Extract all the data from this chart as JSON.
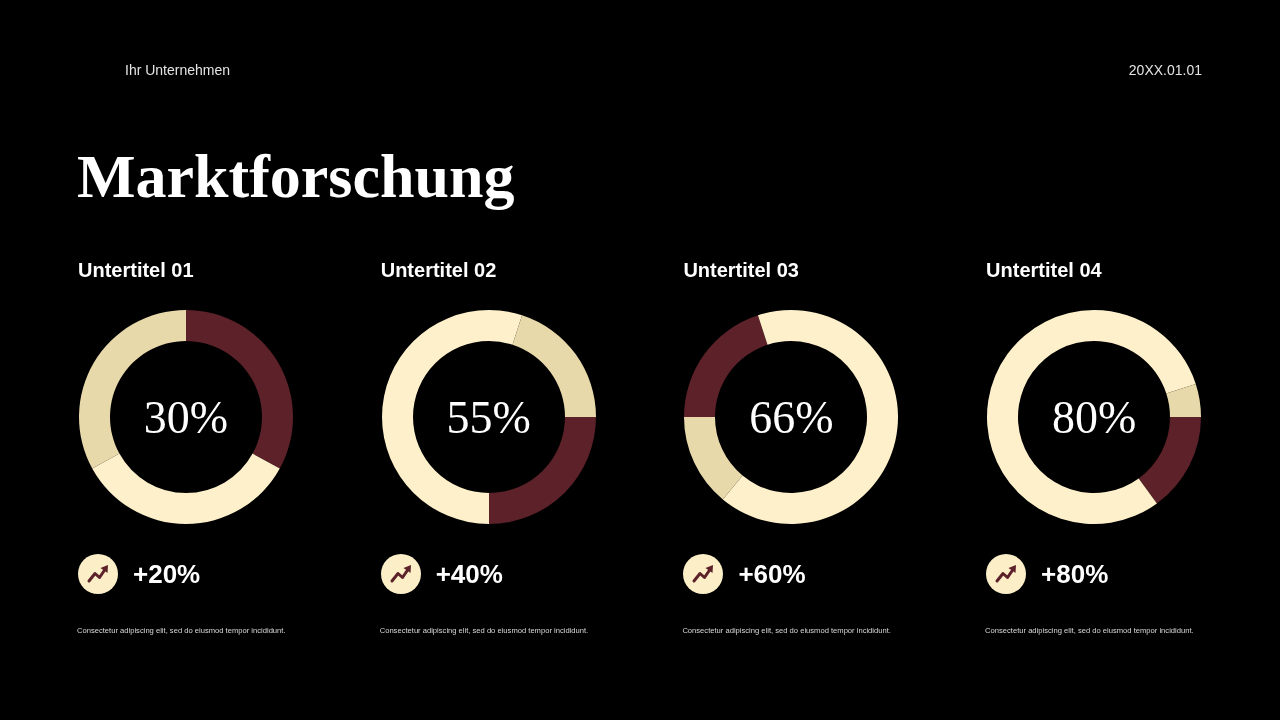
{
  "chart_data": [
    {
      "type": "other",
      "title": "Marktforschung",
      "annotations": [
        "Ihr Unternehmen",
        "20XX.01.01"
      ]
    },
    {
      "type": "donut",
      "title": "Untertitel 01",
      "categories": [
        null,
        null,
        null
      ],
      "values": [
        33,
        34,
        33
      ],
      "colors": [
        "#5c2129",
        "#fdf0cb",
        "#e8d9aa"
      ],
      "annotations": [
        "30%",
        "+20%",
        "Consectetur adipiscing elit, sed do eiusmod tempor incididunt."
      ]
    },
    {
      "type": "donut",
      "title": "Untertitel 02",
      "categories": [
        null,
        null,
        null,
        null
      ],
      "values": [
        5,
        20,
        25,
        50
      ],
      "colors": [
        "#fdf0cb",
        "#e8d9aa",
        "#5c2129",
        "#fdf0cb"
      ],
      "annotations": [
        "55%",
        "+40%",
        "Consectetur adipiscing elit, sed do eiusmod tempor incididunt."
      ]
    },
    {
      "type": "donut",
      "title": "Untertitel 03",
      "categories": [
        null,
        null,
        null,
        null
      ],
      "values": [
        61,
        14,
        20,
        5
      ],
      "colors": [
        "#fdf0cb",
        "#e8d9aa",
        "#5c2129",
        "#fdf0cb"
      ],
      "annotations": [
        "66%",
        "+60%",
        "Consectetur adipiscing elit, sed do eiusmod tempor incididunt."
      ]
    },
    {
      "type": "donut",
      "title": "Untertitel 04",
      "categories": [
        null,
        null,
        null,
        null
      ],
      "values": [
        20,
        5,
        15,
        60
      ],
      "colors": [
        "#fdf0cb",
        "#e8d9aa",
        "#5c2129",
        "#fdf0cb"
      ],
      "annotations": [
        "80%",
        "+80%",
        "Consectetur adipiscing elit, sed do eiusmod tempor incididunt."
      ]
    }
  ]
}
